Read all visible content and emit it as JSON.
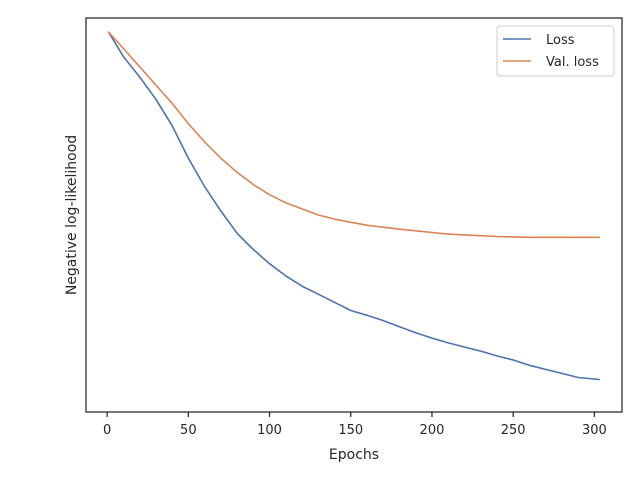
{
  "chart_data": {
    "type": "line",
    "xlabel": "Epochs",
    "ylabel": "Negative log-likelihood",
    "xlim": [
      -13,
      317
    ],
    "ylim": [
      0.03,
      1.0
    ],
    "x_ticks": [
      0,
      50,
      100,
      150,
      200,
      250,
      300
    ],
    "x_tick_labels": [
      "0",
      "50",
      "100",
      "150",
      "200",
      "250",
      "300"
    ],
    "y_tick_labels_shown": false,
    "grid": false,
    "legend": "top-right",
    "series": [
      {
        "name": "Loss",
        "color": "#4c72b0",
        "points": [
          [
            1,
            0.965
          ],
          [
            10,
            0.905
          ],
          [
            20,
            0.855
          ],
          [
            30,
            0.8
          ],
          [
            40,
            0.735
          ],
          [
            50,
            0.655
          ],
          [
            60,
            0.585
          ],
          [
            70,
            0.525
          ],
          [
            80,
            0.47
          ],
          [
            90,
            0.43
          ],
          [
            100,
            0.395
          ],
          [
            110,
            0.365
          ],
          [
            120,
            0.34
          ],
          [
            130,
            0.32
          ],
          [
            140,
            0.3
          ],
          [
            150,
            0.28
          ],
          [
            160,
            0.268
          ],
          [
            170,
            0.255
          ],
          [
            180,
            0.24
          ],
          [
            190,
            0.225
          ],
          [
            200,
            0.212
          ],
          [
            210,
            0.2
          ],
          [
            220,
            0.19
          ],
          [
            230,
            0.18
          ],
          [
            240,
            0.168
          ],
          [
            250,
            0.158
          ],
          [
            260,
            0.145
          ],
          [
            270,
            0.135
          ],
          [
            280,
            0.125
          ],
          [
            290,
            0.115
          ],
          [
            303,
            0.11
          ]
        ]
      },
      {
        "name": "Val. loss",
        "color": "#dd8452",
        "points": [
          [
            1,
            0.965
          ],
          [
            10,
            0.925
          ],
          [
            20,
            0.88
          ],
          [
            30,
            0.835
          ],
          [
            40,
            0.79
          ],
          [
            50,
            0.74
          ],
          [
            60,
            0.695
          ],
          [
            70,
            0.655
          ],
          [
            80,
            0.62
          ],
          [
            90,
            0.59
          ],
          [
            100,
            0.565
          ],
          [
            110,
            0.545
          ],
          [
            120,
            0.53
          ],
          [
            130,
            0.515
          ],
          [
            140,
            0.505
          ],
          [
            150,
            0.497
          ],
          [
            160,
            0.49
          ],
          [
            170,
            0.485
          ],
          [
            180,
            0.48
          ],
          [
            190,
            0.476
          ],
          [
            200,
            0.472
          ],
          [
            210,
            0.468
          ],
          [
            220,
            0.466
          ],
          [
            230,
            0.464
          ],
          [
            240,
            0.462
          ],
          [
            250,
            0.461
          ],
          [
            260,
            0.46
          ],
          [
            270,
            0.46
          ],
          [
            280,
            0.46
          ],
          [
            290,
            0.46
          ],
          [
            303,
            0.46
          ]
        ]
      }
    ]
  }
}
